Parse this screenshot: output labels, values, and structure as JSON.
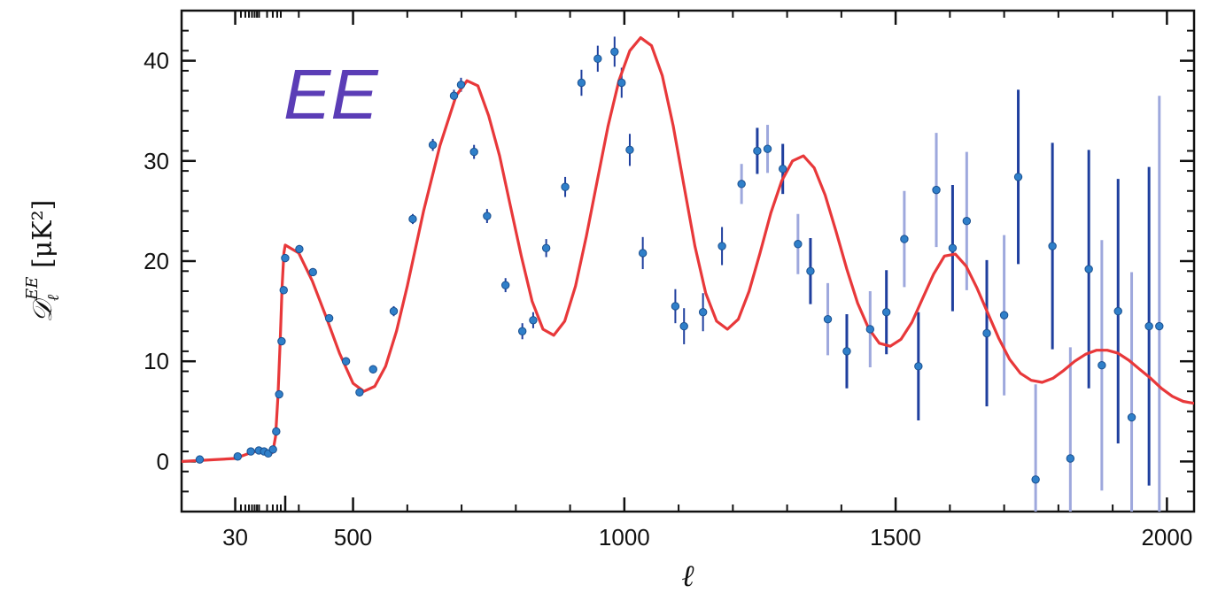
{
  "chart_data": {
    "type": "scatter",
    "title": "",
    "panel_label": "EE",
    "xlabel": "ℓ",
    "ylabel": "𝒟ℓ^EE [μK²]",
    "ylabel_main": "𝒟",
    "ylabel_sub": "ℓ",
    "ylabel_sup": "EE",
    "ylabel_unit": " [μK²]",
    "x_axis_break": 375,
    "xlim": [
      2,
      2050
    ],
    "ylim": [
      -5,
      45
    ],
    "xticks": [
      30,
      500,
      1000,
      1500,
      2000
    ],
    "xtick_labels": [
      "30",
      "500",
      "1000",
      "1500",
      "2000"
    ],
    "yticks": [
      0,
      10,
      20,
      30,
      40
    ],
    "ytick_labels": [
      "0",
      "10",
      "20",
      "30",
      "40"
    ],
    "grid": false,
    "colors": {
      "data_points": "#2f7fc9",
      "error_dark": "#1f3f9e",
      "error_light": "#9ea8dd",
      "model_curve": "#e8383a",
      "panel_label": "#5b3db6"
    },
    "series": [
      {
        "kind": "data_points",
        "x": [
          5,
          34,
          66,
          99,
          129,
          159,
          202,
          238,
          276,
          312,
          347,
          374,
          401,
          426,
          456,
          487,
          512,
          537,
          575,
          610,
          647,
          686,
          699,
          723,
          747,
          781,
          812,
          832,
          856,
          891,
          921,
          951,
          982,
          995,
          1010,
          1034,
          1094,
          1110,
          1145,
          1180,
          1216,
          1245,
          1264,
          1292,
          1320,
          1343,
          1375,
          1410,
          1453,
          1483,
          1516,
          1542,
          1575,
          1605,
          1631,
          1668,
          1700,
          1726,
          1758,
          1789,
          1822,
          1856,
          1880,
          1910,
          1935,
          1967,
          1986
        ],
        "y": [
          0.2,
          0.5,
          1.0,
          1.1,
          1.0,
          0.8,
          1.2,
          3.0,
          6.7,
          12.0,
          17.1,
          20.3,
          21.2,
          18.9,
          14.3,
          10.0,
          6.9,
          9.2,
          15.0,
          24.2,
          31.6,
          36.5,
          37.6,
          30.9,
          24.5,
          17.6,
          13.0,
          14.1,
          21.3,
          27.4,
          37.8,
          40.2,
          40.9,
          37.8,
          31.1,
          20.8,
          15.5,
          13.5,
          14.9,
          21.5,
          27.7,
          31.0,
          31.2,
          29.2,
          21.7,
          19.0,
          14.2,
          11.0,
          13.2,
          14.9,
          22.2,
          9.5,
          27.1,
          21.3,
          24.0,
          12.8,
          14.6,
          28.4,
          -1.8,
          21.5,
          0.3,
          19.2,
          9.6,
          15.0,
          4.4,
          13.5,
          13.5
        ],
        "err": [
          0.2,
          0.2,
          0.2,
          0.2,
          0.2,
          0.2,
          0.3,
          0.3,
          0.3,
          0.3,
          0.4,
          0.4,
          0.4,
          0.4,
          0.4,
          0.4,
          0.4,
          0.4,
          0.5,
          0.5,
          0.6,
          0.6,
          0.7,
          0.7,
          0.7,
          0.7,
          0.8,
          0.8,
          0.9,
          1.0,
          1.3,
          1.3,
          1.5,
          1.5,
          1.6,
          1.6,
          1.7,
          1.8,
          1.9,
          1.9,
          2.0,
          2.3,
          2.4,
          2.5,
          3.0,
          3.3,
          3.6,
          3.7,
          3.8,
          4.2,
          4.8,
          5.4,
          5.7,
          6.3,
          6.9,
          7.3,
          8.0,
          8.7,
          9.5,
          10.3,
          11.1,
          11.9,
          12.5,
          13.2,
          14.5,
          15.9,
          23.0
        ]
      },
      {
        "kind": "model_curve",
        "x": [
          2,
          30,
          60,
          100,
          140,
          170,
          200,
          230,
          260,
          290,
          320,
          350,
          375,
          400,
          425,
          450,
          475,
          500,
          520,
          540,
          560,
          580,
          600,
          630,
          660,
          690,
          710,
          730,
          750,
          770,
          790,
          810,
          830,
          850,
          870,
          890,
          910,
          930,
          950,
          970,
          990,
          1010,
          1030,
          1050,
          1070,
          1090,
          1110,
          1130,
          1150,
          1170,
          1190,
          1210,
          1230,
          1250,
          1270,
          1290,
          1310,
          1330,
          1350,
          1370,
          1390,
          1410,
          1430,
          1450,
          1470,
          1490,
          1510,
          1530,
          1550,
          1570,
          1590,
          1610,
          1630,
          1650,
          1670,
          1690,
          1710,
          1730,
          1750,
          1770,
          1790,
          1810,
          1830,
          1850,
          1870,
          1890,
          1910,
          1930,
          1950,
          1970,
          1990,
          2010,
          2030,
          2050
        ],
        "y": [
          0.0,
          0.3,
          0.8,
          1.1,
          1.0,
          0.8,
          0.9,
          2.5,
          6.5,
          12.0,
          17.5,
          20.8,
          21.6,
          20.8,
          18.0,
          14.5,
          10.8,
          7.8,
          7.0,
          7.5,
          9.5,
          13.0,
          17.5,
          25.0,
          31.5,
          36.5,
          38.0,
          37.5,
          34.5,
          30.5,
          25.5,
          20.5,
          16.0,
          13.2,
          12.6,
          14.0,
          17.5,
          22.5,
          28.0,
          33.5,
          38.0,
          41.0,
          42.3,
          41.5,
          38.5,
          33.5,
          27.5,
          21.5,
          16.8,
          14.0,
          13.2,
          14.2,
          17.0,
          20.8,
          24.8,
          28.0,
          30.0,
          30.5,
          29.3,
          26.6,
          23.0,
          19.2,
          15.8,
          13.3,
          11.8,
          11.5,
          12.2,
          13.9,
          16.3,
          18.7,
          20.5,
          20.7,
          19.5,
          17.3,
          14.8,
          12.3,
          10.2,
          8.8,
          8.1,
          7.9,
          8.3,
          9.1,
          10.0,
          10.7,
          11.1,
          11.1,
          10.8,
          10.1,
          9.2,
          8.3,
          7.3,
          6.5,
          6.0,
          5.8
        ]
      }
    ]
  }
}
